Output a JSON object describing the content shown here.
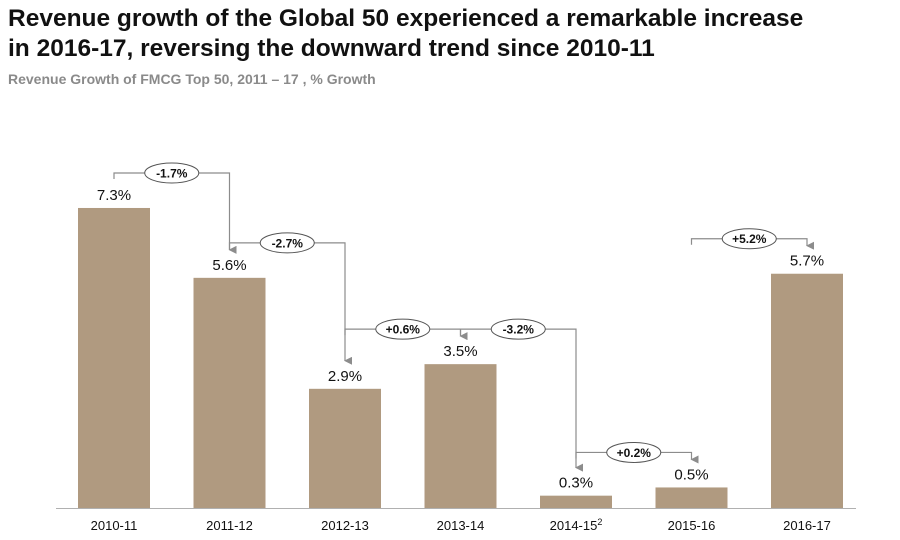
{
  "title_line1": "Revenue growth of the Global 50 experienced a remarkable increase",
  "title_line2": "in 2016-17, reversing the downward trend since 2010-11",
  "subtitle": "Revenue Growth of FMCG Top 50, 2011 – 17 , % Growth",
  "colors": {
    "bar": "#b09a80",
    "arrow": "#8c8c8c",
    "axis": "#b0b0b0",
    "text": "#111111"
  },
  "chart_data": {
    "type": "bar",
    "categories": [
      "2010-11",
      "2011-12",
      "2012-13",
      "2013-14",
      "2014-15",
      "2015-16",
      "2016-17"
    ],
    "category_superscripts": [
      "",
      "",
      "",
      "",
      "2",
      "",
      ""
    ],
    "values": [
      7.3,
      5.6,
      2.9,
      3.5,
      0.3,
      0.5,
      5.7
    ],
    "value_labels": [
      "7.3%",
      "5.6%",
      "2.9%",
      "3.5%",
      "0.3%",
      "0.5%",
      "5.7%"
    ],
    "changes": [
      {
        "from": 0,
        "to": 1,
        "label": "-1.7%"
      },
      {
        "from": 1,
        "to": 2,
        "label": "-2.7%"
      },
      {
        "from": 2,
        "to": 3,
        "label": "+0.6%"
      },
      {
        "from": 3,
        "to": 4,
        "label": "-3.2%"
      },
      {
        "from": 4,
        "to": 5,
        "label": "+0.2%"
      },
      {
        "from": 5,
        "to": 6,
        "label": "+5.2%"
      }
    ],
    "title": "Revenue growth of the Global 50 experienced a remarkable increase in 2016-17, reversing the downward trend since 2010-11",
    "subtitle": "Revenue Growth of FMCG Top 50, 2011 – 17 , % Growth",
    "xlabel": "",
    "ylabel": "",
    "ylim": [
      0,
      8
    ],
    "grid": false,
    "legend": "none"
  }
}
